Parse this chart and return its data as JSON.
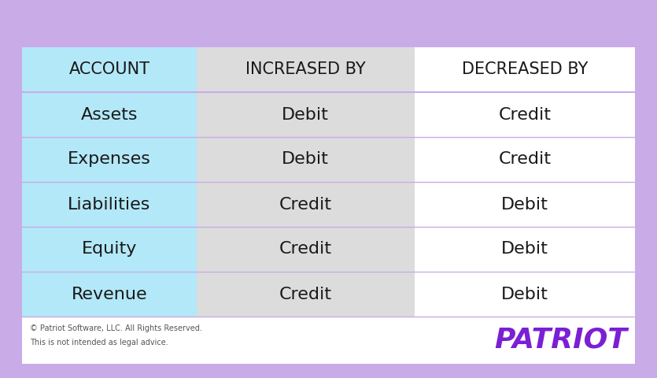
{
  "outer_bg": "#c9abe8",
  "inner_bg": "#ffffff",
  "col1_bg": "#b3e8f8",
  "col2_bg": "#dcdcdc",
  "col3_bg": "#ffffff",
  "divider_color": "#c9abe8",
  "text_color": "#1a1a1a",
  "patriot_color": "#7b1fd4",
  "footer_text_color": "#555555",
  "headers": [
    "ACCOUNT",
    "INCREASED BY",
    "DECREASED BY"
  ],
  "rows": [
    [
      "Assets",
      "Debit",
      "Credit"
    ],
    [
      "Expenses",
      "Debit",
      "Credit"
    ],
    [
      "Liabilities",
      "Credit",
      "Debit"
    ],
    [
      "Equity",
      "Credit",
      "Debit"
    ],
    [
      "Revenue",
      "Credit",
      "Debit"
    ]
  ],
  "footer_line1": "© Patriot Software, LLC. All Rights Reserved.",
  "footer_line2": "This is not intended as legal advice.",
  "patriot_label": "PATRIOT",
  "header_fontsize": 15,
  "cell_fontsize": 16,
  "patriot_fontsize": 26,
  "footer_fontsize": 7
}
